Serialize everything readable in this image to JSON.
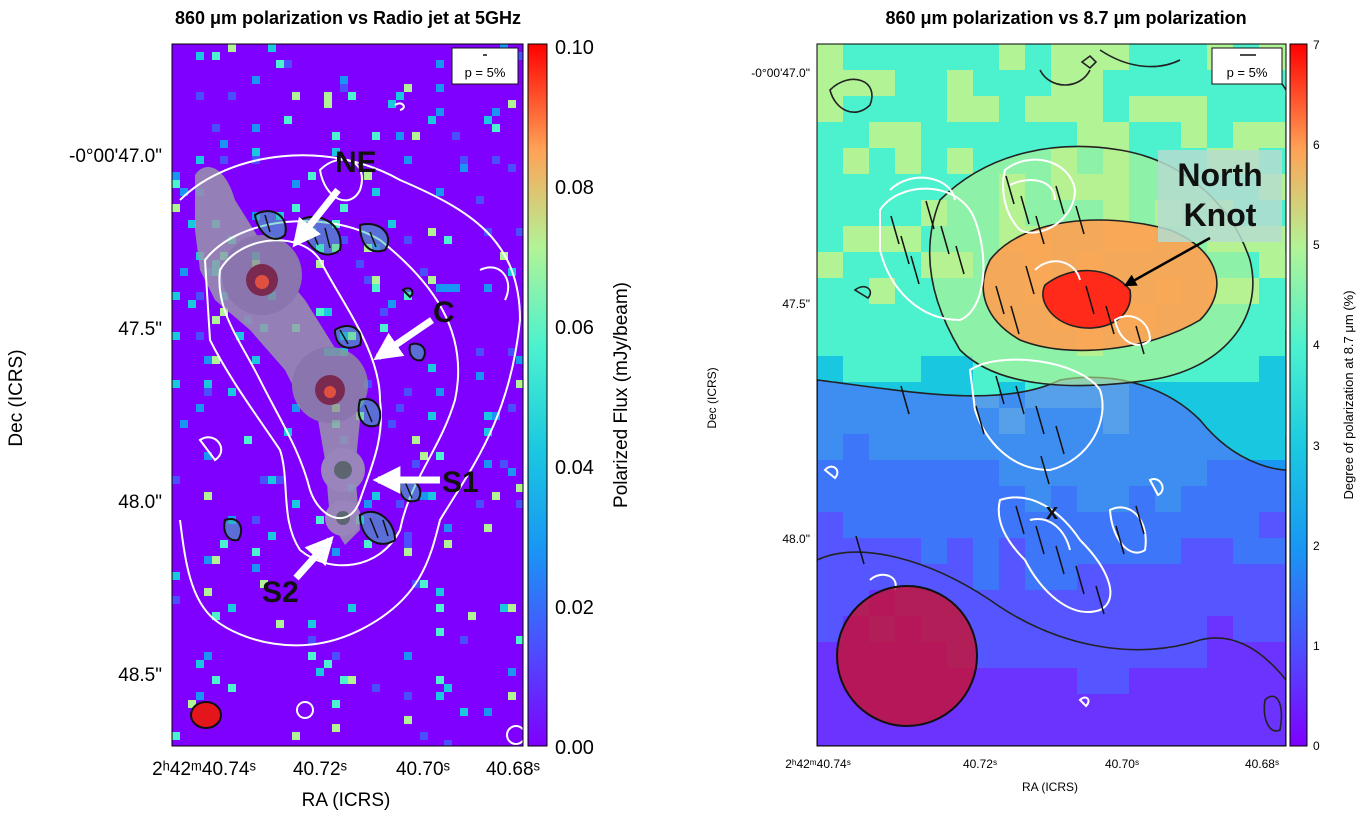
{
  "chart_data": [
    {
      "type": "heatmap",
      "title": "860 μm polarization vs Radio jet at 5GHz",
      "xlabel": "RA (ICRS)",
      "ylabel": "Dec (ICRS)",
      "x_ticks": [
        "2ʰ42ᵐ40.74ˢ",
        "40.72ˢ",
        "40.70ˢ",
        "40.68ˢ"
      ],
      "y_ticks": [
        "-0°00'47.0\"",
        "47.5\"",
        "48.0\"",
        "48.5\""
      ],
      "colorbar": {
        "label": "Polarized Flux (mJy/beam)",
        "range": [
          0.0,
          0.1
        ],
        "ticks": [
          "0.00",
          "0.02",
          "0.04",
          "0.06",
          "0.08",
          "0.10"
        ],
        "colormap": "rainbow"
      },
      "legend": {
        "text": "p = 5%",
        "position": "top-right"
      },
      "annotations": [
        "NE",
        "C",
        "S1",
        "S2"
      ],
      "beam_color": "#e4151b",
      "background_color": "#7f00ff"
    },
    {
      "type": "heatmap",
      "title": "860 μm polarization vs 8.7 μm polarization",
      "xlabel": "RA (ICRS)",
      "ylabel": "Dec (ICRS)",
      "x_ticks": [
        "2ʰ42ᵐ40.74ˢ",
        "40.72ˢ",
        "40.70ˢ",
        "40.68ˢ"
      ],
      "y_ticks": [
        "-0°00'47.0\"",
        "47.5\"",
        "48.0\""
      ],
      "colorbar": {
        "label": "Degree of polarization at 8.7 μm (%)",
        "range": [
          0,
          7
        ],
        "ticks": [
          "0",
          "1",
          "2",
          "3",
          "4",
          "5",
          "6",
          "7"
        ],
        "colormap": "rainbow"
      },
      "legend": {
        "text": "p = 5%",
        "position": "top-right"
      },
      "annotations": [
        "North Knot",
        "x"
      ],
      "beam_color": "#c8102e"
    }
  ]
}
